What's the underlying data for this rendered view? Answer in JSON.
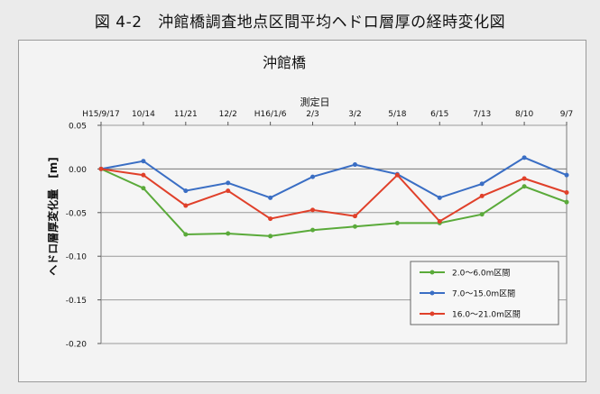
{
  "figure": {
    "title": "図 4-2　沖館橋調査地点区間平均ヘドロ層厚の経時変化図"
  },
  "chart_data": {
    "type": "line",
    "title": "沖館橋",
    "xlabel": "測定日",
    "ylabel": "ヘドロ層厚変化量　[m]",
    "categories": [
      "H15/9/17",
      "10/14",
      "11/21",
      "12/2",
      "H16/1/6",
      "2/3",
      "3/2",
      "5/18",
      "6/15",
      "7/13",
      "8/10",
      "9/7"
    ],
    "ylim": [
      -0.2,
      0.05
    ],
    "yticks": [
      "0.05",
      "0.00",
      "-0.05",
      "-0.10",
      "-0.15",
      "-0.20"
    ],
    "ytick_values": [
      0.05,
      0.0,
      -0.05,
      -0.1,
      -0.15,
      -0.2
    ],
    "grid": true,
    "x_axis_position": "top",
    "legend_position": "bottom-right",
    "series": [
      {
        "name": "2.0～6.0m区間",
        "color": "#5aaa3a",
        "values": [
          0.0,
          -0.022,
          -0.075,
          -0.074,
          -0.077,
          -0.07,
          -0.066,
          -0.062,
          -0.062,
          -0.052,
          -0.02,
          -0.038
        ]
      },
      {
        "name": "7.0～15.0m区間",
        "color": "#3a6ec4",
        "values": [
          0.0,
          0.009,
          -0.025,
          -0.016,
          -0.033,
          -0.009,
          0.005,
          -0.006,
          -0.033,
          -0.017,
          0.013,
          -0.007
        ]
      },
      {
        "name": "16.0～21.0m区間",
        "color": "#e0402a",
        "values": [
          0.0,
          -0.007,
          -0.042,
          -0.025,
          -0.057,
          -0.047,
          -0.054,
          -0.007,
          -0.06,
          -0.031,
          -0.011,
          -0.027
        ]
      }
    ]
  }
}
